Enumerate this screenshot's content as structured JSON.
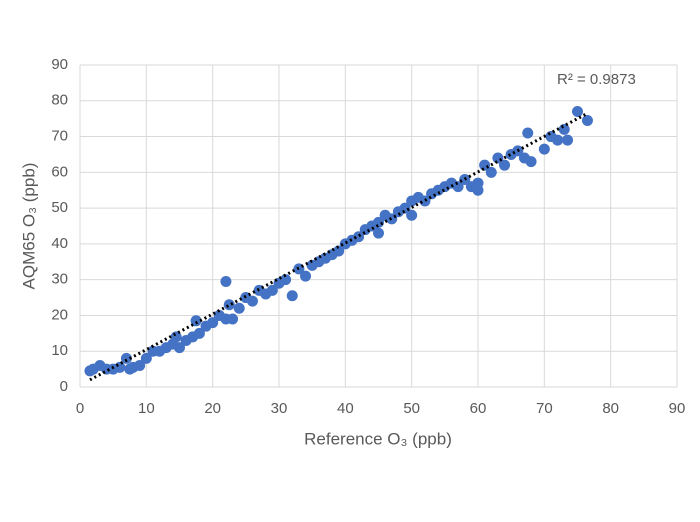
{
  "chart_data": {
    "type": "scatter",
    "xlabel": "Reference O₃ (ppb)",
    "ylabel": "AQM65 O₃ (ppb)",
    "annotation": "R² = 0.9873",
    "xlim": [
      0,
      90
    ],
    "ylim": [
      0,
      90
    ],
    "xticks": [
      0,
      10,
      20,
      30,
      40,
      50,
      60,
      70,
      80,
      90
    ],
    "yticks": [
      0,
      10,
      20,
      30,
      40,
      50,
      60,
      70,
      80,
      90
    ],
    "grid": true,
    "series": [
      {
        "color": "#4472c4",
        "x": [
          1.5,
          2,
          3,
          4,
          5,
          6,
          7,
          7.5,
          8,
          9,
          10,
          11,
          12,
          13,
          14,
          14.5,
          15,
          16,
          17,
          17.5,
          18,
          19,
          20,
          21,
          22,
          22,
          22.5,
          23,
          24,
          25,
          26,
          27,
          28,
          29,
          30,
          31,
          32,
          33,
          34,
          35,
          36,
          37,
          38,
          39,
          40,
          41,
          42,
          43,
          44,
          45,
          45,
          46,
          47,
          48,
          49,
          50,
          50,
          51,
          52,
          53,
          54,
          55,
          56,
          57,
          58,
          59,
          60,
          60,
          61,
          62,
          63,
          64,
          65,
          66,
          67,
          67.5,
          68,
          70,
          71,
          72,
          73,
          73.5,
          75,
          76.5
        ],
        "values": [
          4.5,
          5,
          6,
          5,
          5,
          5.5,
          8,
          5,
          5.5,
          6,
          8,
          10,
          10,
          11,
          12,
          14,
          11,
          13,
          14,
          18.5,
          15,
          17,
          18,
          20,
          19,
          29.5,
          23,
          19,
          22,
          25,
          24,
          27,
          26,
          27,
          29,
          30,
          25.5,
          33,
          31,
          34,
          35,
          36,
          37,
          38,
          40,
          41,
          42,
          44,
          45,
          46,
          43,
          48,
          47,
          49,
          50,
          52,
          48,
          53,
          52,
          54,
          55,
          56,
          57,
          56,
          58,
          56,
          57,
          55,
          62,
          60,
          64,
          62,
          65,
          66,
          64,
          71,
          63,
          66.5,
          70,
          69,
          72,
          69,
          77,
          74.5
        ]
      }
    ],
    "trendline": {
      "color": "#000000",
      "x": [
        1.5,
        76.5
      ],
      "values": [
        2,
        76.5
      ]
    }
  }
}
